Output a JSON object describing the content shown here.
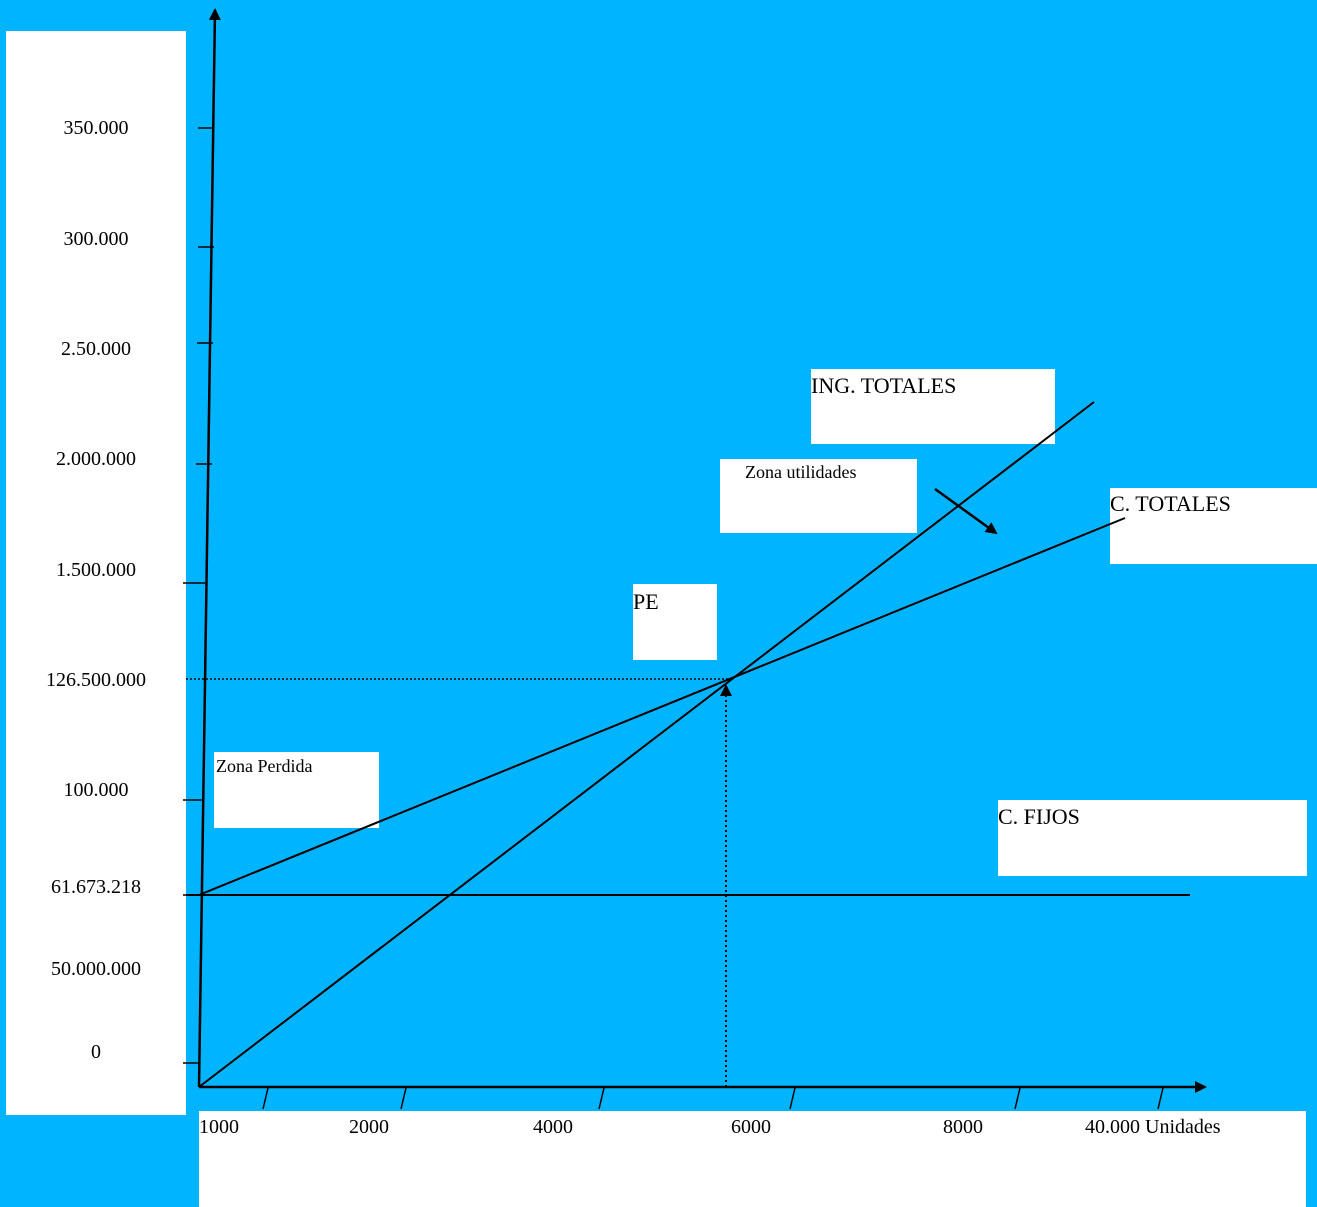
{
  "chart_data": {
    "type": "line",
    "y_tick_labels": [
      "350.000",
      "300.000",
      "2.50.000",
      "2.000.000",
      "1.500.000",
      "126.500.000",
      "100.000",
      "61.673.218",
      "50.000.000",
      "0"
    ],
    "x_tick_labels": [
      "1000",
      "2000",
      "4000",
      "6000",
      "8000",
      "40.000 Unidades"
    ],
    "series": [
      {
        "name": "ING. TOTALES"
      },
      {
        "name": "C. TOTALES"
      },
      {
        "name": "C. FIJOS"
      }
    ],
    "annotations": {
      "break_even": "PE",
      "profit_zone": "Zona utilidades",
      "loss_zone": "Zona Perdida"
    },
    "break_even_value": "126.500.000",
    "fixed_cost_value": "61.673.218",
    "colors": {
      "background": "#00B4FF",
      "box": "#FFFFFF",
      "ink": "#000000"
    }
  }
}
